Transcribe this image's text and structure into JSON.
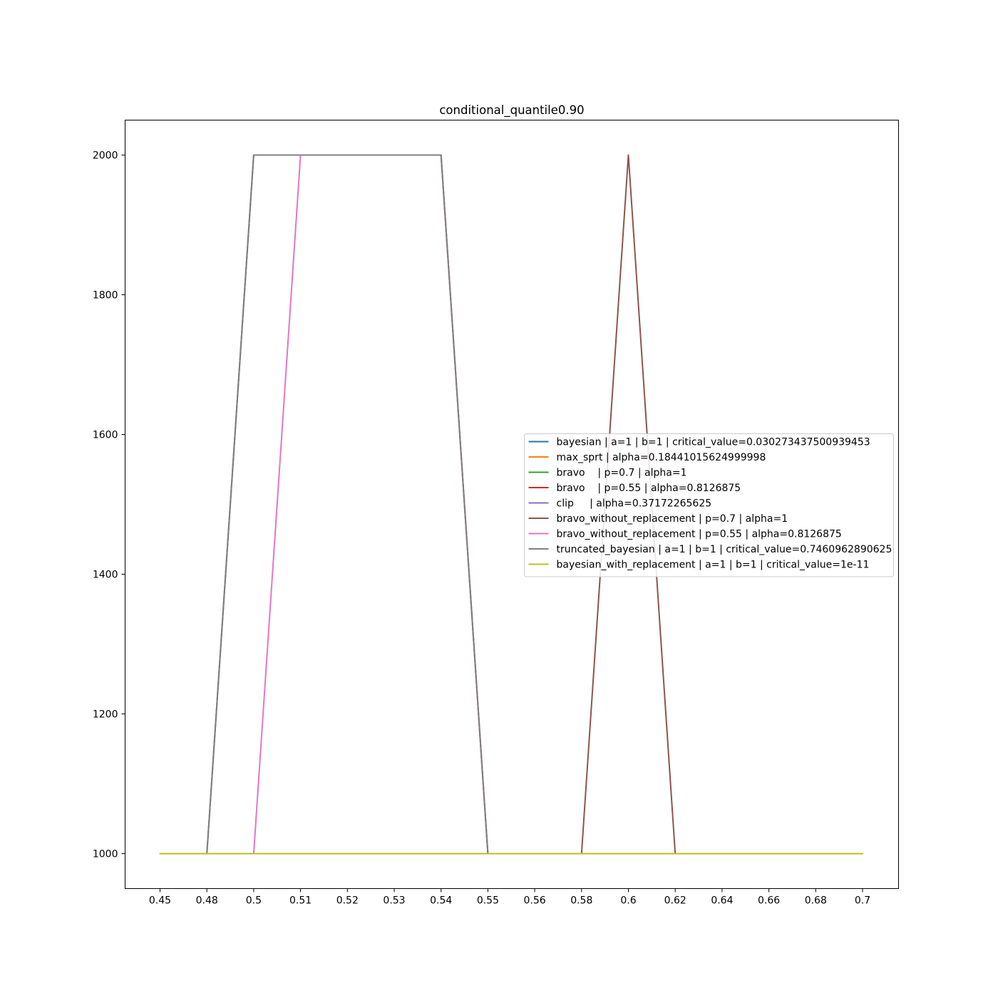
{
  "chart_data": {
    "type": "line",
    "title": "conditional_quantile0.90",
    "xlabel": "",
    "ylabel": "",
    "x_ticks": [
      "0.45",
      "0.48",
      "0.5",
      "0.51",
      "0.52",
      "0.53",
      "0.54",
      "0.55",
      "0.56",
      "0.58",
      "0.6",
      "0.62",
      "0.64",
      "0.66",
      "0.68",
      "0.7"
    ],
    "y_ticks": [
      1000,
      1200,
      1400,
      1600,
      1800,
      2000
    ],
    "ylim": [
      950,
      2050
    ],
    "grid": false,
    "legend_position": "center-right",
    "series": [
      {
        "name": "bayesian | a=1 | b=1 | critical_value=0.030273437500939453",
        "color": "#1f77b4",
        "values": [
          1000,
          1000,
          1000,
          1000,
          1000,
          1000,
          1000,
          1000,
          1000,
          1000,
          1000,
          1000,
          1000,
          1000,
          1000,
          1000
        ]
      },
      {
        "name": "max_sprt | alpha=0.18441015624999998",
        "color": "#ff7f0e",
        "values": [
          1000,
          1000,
          1000,
          1000,
          1000,
          1000,
          1000,
          1000,
          1000,
          1000,
          1000,
          1000,
          1000,
          1000,
          1000,
          1000
        ]
      },
      {
        "name": "bravo    | p=0.7 | alpha=1",
        "color": "#2ca02c",
        "values": [
          1000,
          1000,
          1000,
          1000,
          1000,
          1000,
          1000,
          1000,
          1000,
          1000,
          1000,
          1000,
          1000,
          1000,
          1000,
          1000
        ]
      },
      {
        "name": "bravo    | p=0.55 | alpha=0.8126875",
        "color": "#d62728",
        "values": [
          1000,
          1000,
          1000,
          1000,
          1000,
          1000,
          1000,
          1000,
          1000,
          1000,
          1000,
          1000,
          1000,
          1000,
          1000,
          1000
        ]
      },
      {
        "name": "clip     | alpha=0.37172265625",
        "color": "#9467bd",
        "values": [
          1000,
          1000,
          1000,
          1000,
          1000,
          1000,
          1000,
          1000,
          1000,
          1000,
          1000,
          1000,
          1000,
          1000,
          1000,
          1000
        ]
      },
      {
        "name": "bravo_without_replacement | p=0.7 | alpha=1",
        "color": "#8c564b",
        "values": [
          1000,
          1000,
          2000,
          2000,
          2000,
          2000,
          2000,
          1000,
          1000,
          1000,
          2000,
          1000,
          1000,
          1000,
          1000,
          1000
        ]
      },
      {
        "name": "bravo_without_replacement | p=0.55 | alpha=0.8126875",
        "color": "#e377c2",
        "values": [
          1000,
          1000,
          1000,
          2000,
          2000,
          2000,
          2000,
          1000,
          1000,
          1000,
          1000,
          1000,
          1000,
          1000,
          1000,
          1000
        ]
      },
      {
        "name": "truncated_bayesian | a=1 | b=1 | critical_value=0.7460962890625",
        "color": "#7f7f7f",
        "values": [
          1000,
          1000,
          2000,
          2000,
          2000,
          2000,
          2000,
          1000,
          1000,
          1000,
          1000,
          1000,
          1000,
          1000,
          1000,
          1000
        ]
      },
      {
        "name": "bayesian_with_replacement | a=1 | b=1 | critical_value=1e-11",
        "color": "#bcbd22",
        "values": [
          1000,
          1000,
          1000,
          1000,
          1000,
          1000,
          1000,
          1000,
          1000,
          1000,
          1000,
          1000,
          1000,
          1000,
          1000,
          1000
        ]
      }
    ]
  }
}
